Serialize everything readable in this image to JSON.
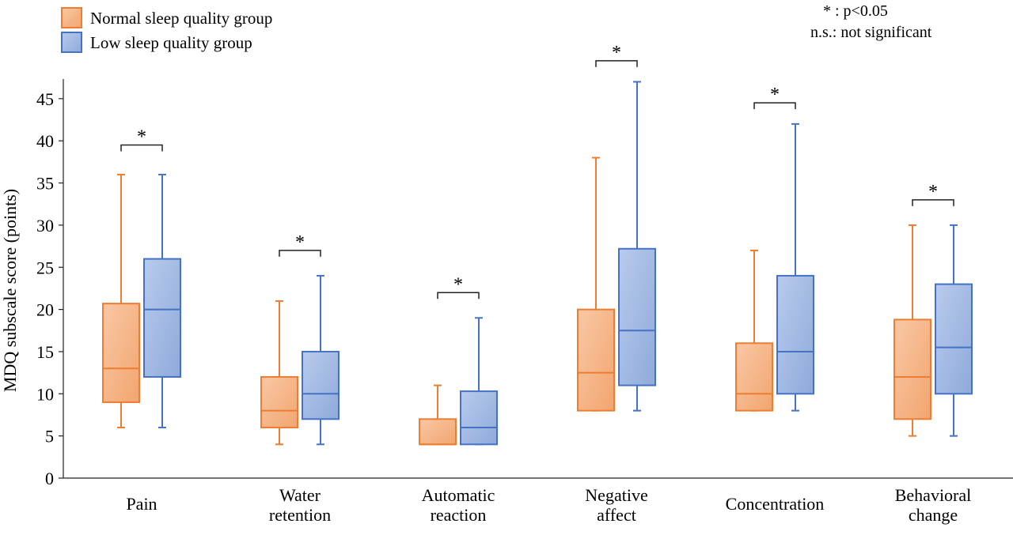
{
  "chart_data": {
    "type": "boxplot",
    "title": "",
    "xlabel": "",
    "ylabel": "MDQ subscale score (points)",
    "ylim": [
      0,
      47
    ],
    "yticks": [
      0,
      5,
      10,
      15,
      20,
      25,
      30,
      35,
      40,
      45
    ],
    "grid": false,
    "legend_position": "top-left",
    "categories": [
      {
        "lines": [
          "Pain"
        ]
      },
      {
        "lines": [
          "Water",
          "retention"
        ]
      },
      {
        "lines": [
          "Automatic",
          "reaction"
        ]
      },
      {
        "lines": [
          "Negative",
          "affect"
        ]
      },
      {
        "lines": [
          "Concentration"
        ]
      },
      {
        "lines": [
          "Behavioral",
          "change"
        ]
      }
    ],
    "series": [
      {
        "name": "Normal sleep quality group",
        "color": "#ed7d31",
        "fill_light": "#f9c8a5",
        "fill_dark": "#f2a56f",
        "boxes": [
          {
            "min": 6,
            "q1": 9,
            "median": 13,
            "q3": 20.7,
            "max": 36
          },
          {
            "min": 4,
            "q1": 6,
            "median": 8,
            "q3": 12,
            "max": 21
          },
          {
            "min": 4,
            "q1": 4,
            "median": 4,
            "q3": 7,
            "max": 11
          },
          {
            "min": 8,
            "q1": 8,
            "median": 12.5,
            "q3": 20,
            "max": 38
          },
          {
            "min": 8,
            "q1": 8,
            "median": 10,
            "q3": 16,
            "max": 27
          },
          {
            "min": 5,
            "q1": 7,
            "median": 12,
            "q3": 18.8,
            "max": 30
          }
        ]
      },
      {
        "name": "Low sleep quality group",
        "color": "#4472c4",
        "fill_light": "#b9cbec",
        "fill_dark": "#8eaadb",
        "boxes": [
          {
            "min": 6,
            "q1": 12,
            "median": 20,
            "q3": 26,
            "max": 36
          },
          {
            "min": 4,
            "q1": 7,
            "median": 10,
            "q3": 15,
            "max": 24
          },
          {
            "min": 4,
            "q1": 4,
            "median": 6,
            "q3": 10.3,
            "max": 19
          },
          {
            "min": 8,
            "q1": 11,
            "median": 17.5,
            "q3": 27.2,
            "max": 47
          },
          {
            "min": 8,
            "q1": 10,
            "median": 15,
            "q3": 24,
            "max": 42
          },
          {
            "min": 5,
            "q1": 10,
            "median": 15.5,
            "q3": 23,
            "max": 30
          }
        ]
      }
    ],
    "annotations": [
      {
        "category": 0,
        "label": "*",
        "y": 39.5
      },
      {
        "category": 1,
        "label": "*",
        "y": 27
      },
      {
        "category": 2,
        "label": "*",
        "y": 22
      },
      {
        "category": 3,
        "label": "*",
        "y": 49.5
      },
      {
        "category": 4,
        "label": "*",
        "y": 44.5
      },
      {
        "category": 5,
        "label": "*",
        "y": 33
      }
    ],
    "notes": [
      " : p<0.05",
      "n.s.: not significant"
    ],
    "notes_star": "*"
  }
}
